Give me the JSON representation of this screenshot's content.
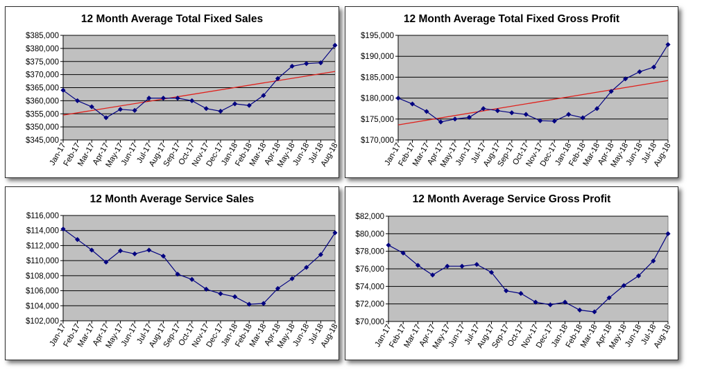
{
  "colors": {
    "plot_bg": "#c0c0c0",
    "series": "#000080",
    "trend": "#e0201b",
    "grid": "#000000"
  },
  "chart_data": [
    {
      "type": "line",
      "title": "12 Month Average Total Fixed Sales",
      "categories": [
        "Jan-17",
        "Feb-17",
        "Mar-17",
        "Apr-17",
        "May-17",
        "Jun-17",
        "Jul-17",
        "Aug-17",
        "Sep-17",
        "Oct-17",
        "Nov-17",
        "Dec-17",
        "Jan-18",
        "Feb-18",
        "Mar-18",
        "Apr-18",
        "May-18",
        "Jun-18",
        "Jul-18",
        "Aug-18"
      ],
      "series": [
        {
          "values": [
            364000,
            360000,
            357700,
            353500,
            356700,
            356300,
            361000,
            361000,
            361000,
            360000,
            357000,
            356000,
            358800,
            358200,
            362000,
            368500,
            373200,
            374200,
            374500,
            381200
          ]
        }
      ],
      "trendline": {
        "type": "linear",
        "from": 354500,
        "to": 371200
      },
      "ylim": [
        345000,
        385000
      ],
      "yticks": [
        "$345,000",
        "$350,000",
        "$355,000",
        "$360,000",
        "$365,000",
        "$370,000",
        "$375,000",
        "$380,000",
        "$385,000"
      ],
      "grid": true
    },
    {
      "type": "line",
      "title": "12 Month Average Total Fixed Gross Profit",
      "categories": [
        "Jan-17",
        "Feb-17",
        "Mar-17",
        "Apr-17",
        "May-17",
        "Jun-17",
        "Jul-17",
        "Aug-17",
        "Sep-17",
        "Oct-17",
        "Nov-17",
        "Dec-17",
        "Jan-18",
        "Feb-18",
        "Mar-18",
        "Apr-18",
        "May-18",
        "Jun-18",
        "Jul-18",
        "Aug-18"
      ],
      "series": [
        {
          "values": [
            180000,
            178600,
            176800,
            174300,
            175000,
            175400,
            177500,
            177000,
            176500,
            176100,
            174600,
            174500,
            176100,
            175300,
            177500,
            181600,
            184600,
            186300,
            187400,
            192800
          ]
        }
      ],
      "trendline": {
        "type": "linear",
        "from": 173600,
        "to": 184200
      },
      "ylim": [
        170000,
        195000
      ],
      "yticks": [
        "$170,000",
        "$175,000",
        "$180,000",
        "$185,000",
        "$190,000",
        "$195,000"
      ],
      "grid": true
    },
    {
      "type": "line",
      "title": "12 Month Average Service Sales",
      "categories": [
        "Jan-17",
        "Feb-17",
        "Mar-17",
        "Apr-17",
        "May-17",
        "Jun-17",
        "Jul-17",
        "Aug-17",
        "Sep-17",
        "Oct-17",
        "Nov-17",
        "Dec-17",
        "Jan-18",
        "Feb-18",
        "Mar-18",
        "Apr-18",
        "May-18",
        "Jun-18",
        "Jul-18",
        "Aug-18"
      ],
      "series": [
        {
          "values": [
            114200,
            112800,
            111400,
            109800,
            111300,
            110900,
            111400,
            110600,
            108200,
            107500,
            106200,
            105600,
            105200,
            104200,
            104300,
            106300,
            107600,
            109100,
            110800,
            113700
          ]
        }
      ],
      "ylim": [
        102000,
        116000
      ],
      "yticks": [
        "$102,000",
        "$104,000",
        "$106,000",
        "$108,000",
        "$110,000",
        "$112,000",
        "$114,000",
        "$116,000"
      ],
      "grid": true
    },
    {
      "type": "line",
      "title": "12 Month Average Service Gross Profit",
      "categories": [
        "Jan-17",
        "Feb-17",
        "Mar-17",
        "Apr-17",
        "May-17",
        "Jun-17",
        "Jul-17",
        "Aug-17",
        "Sep-17",
        "Oct-17",
        "Nov-17",
        "Dec-17",
        "Jan-18",
        "Feb-18",
        "Mar-18",
        "Apr-18",
        "May-18",
        "Jun-18",
        "Jul-18",
        "Aug-18"
      ],
      "series": [
        {
          "values": [
            78700,
            77800,
            76400,
            75300,
            76300,
            76300,
            76500,
            75600,
            73500,
            73200,
            72200,
            71900,
            72200,
            71300,
            71100,
            72700,
            74100,
            75200,
            76900,
            80000
          ]
        }
      ],
      "ylim": [
        70000,
        82000
      ],
      "yticks": [
        "$70,000",
        "$72,000",
        "$74,000",
        "$76,000",
        "$78,000",
        "$80,000",
        "$82,000"
      ],
      "grid": true
    }
  ]
}
